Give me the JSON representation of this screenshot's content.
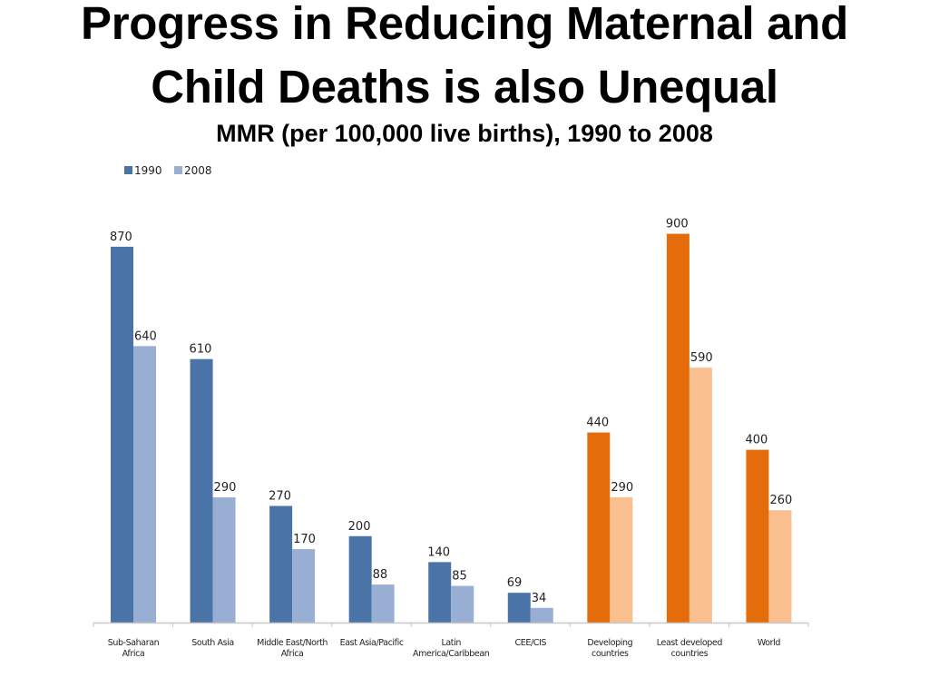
{
  "slide": {
    "title_line_1": "Progress in Reducing Maternal and",
    "title_line_2": "Child Deaths is also Unequal",
    "subtitle": "MMR (per 100,000 live births), 1990 to 2008"
  },
  "chart_data": {
    "type": "bar",
    "title": "",
    "xlabel": "",
    "ylabel": "",
    "ylim": [
      0,
      1000
    ],
    "grid": false,
    "legend_position": "top-left",
    "legend": [
      {
        "label": "1990",
        "color": "#4a73a8"
      },
      {
        "label": "2008",
        "color": "#98afd3"
      }
    ],
    "categories": [
      [
        "Sub-Saharan",
        "Africa"
      ],
      [
        "South Asia"
      ],
      [
        "Middle East/North",
        "Africa"
      ],
      [
        "East Asia/Pacific"
      ],
      [
        "Latin",
        "America/Caribbean"
      ],
      [
        "CEE/CIS"
      ],
      [
        "Developing",
        "countries"
      ],
      [
        "Least developed",
        "countries"
      ],
      [
        "World"
      ]
    ],
    "series": [
      {
        "name": "1990",
        "values": [
          870,
          610,
          270,
          200,
          140,
          69,
          440,
          900,
          400
        ]
      },
      {
        "name": "2008",
        "values": [
          640,
          290,
          170,
          88,
          85,
          34,
          290,
          590,
          260
        ]
      }
    ],
    "colors": {
      "1990": [
        "#4a73a8",
        "#4a73a8",
        "#4a73a8",
        "#4a73a8",
        "#4a73a8",
        "#4a73a8",
        "#e46c0a",
        "#e46c0a",
        "#e46c0a"
      ],
      "2008": [
        "#98afd3",
        "#98afd3",
        "#98afd3",
        "#98afd3",
        "#98afd3",
        "#98afd3",
        "#f9bf8f",
        "#f9bf8f",
        "#f9bf8f"
      ]
    },
    "axis_color": "#c8c8c8"
  }
}
